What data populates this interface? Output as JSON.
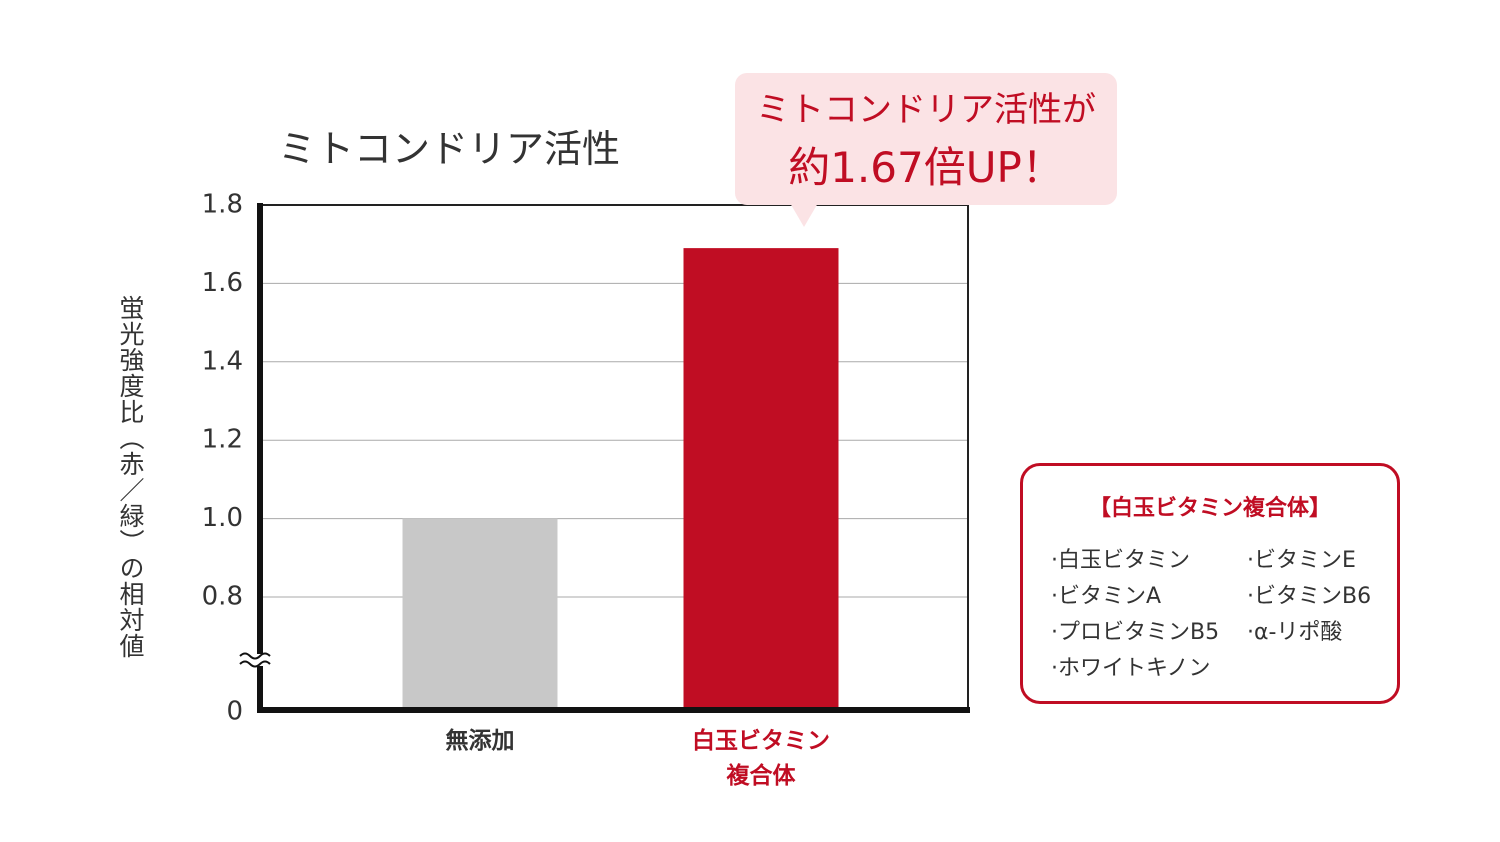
{
  "chart_data": {
    "type": "bar",
    "title": "ミトコンドリア活性",
    "y_label": "蛍光強度比（赤／緑）の相対値",
    "categories": [
      "無添加",
      "白玉ビタミン複合体"
    ],
    "values": [
      1.0,
      1.69
    ],
    "colors": [
      "#c8c8c8",
      "#c00d23"
    ],
    "ylim": [
      0,
      1.8
    ],
    "yticks": [
      0,
      {
        "value": 0.8,
        "label": "0.8"
      },
      {
        "value": 1.0,
        "label": "1.0"
      },
      {
        "value": 1.2,
        "label": "1.2"
      },
      {
        "value": 1.4,
        "label": "1.4"
      },
      {
        "value": 1.6,
        "label": "1.6"
      },
      {
        "value": 1.8,
        "label": "1.8"
      }
    ],
    "axis_break": true,
    "grid": true,
    "annotation": [
      "ミトコンドリア活性が",
      "約1.67倍UP！"
    ],
    "legend_box": {
      "title": "【白玉ビタミン複合体】",
      "items": [
        "·白玉ビタミン",
        "·ビタミンA",
        "·プロビタミンB5",
        "·ホワイトキノン",
        "·ビタミンE",
        "·ビタミンB6",
        "·α-リポ酸"
      ]
    }
  }
}
